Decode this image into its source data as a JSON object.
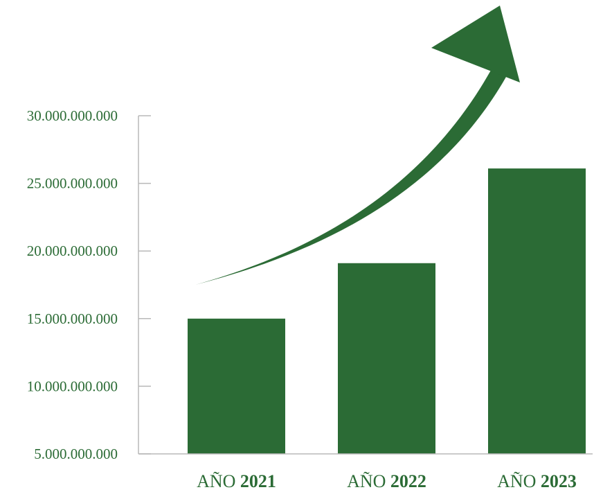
{
  "chart_data": {
    "type": "bar",
    "title": "",
    "xlabel": "",
    "ylabel": "",
    "categories": [
      {
        "prefix": "AÑO",
        "year": "2021"
      },
      {
        "prefix": "AÑO",
        "year": "2022"
      },
      {
        "prefix": "AÑO",
        "year": "2023"
      }
    ],
    "values": [
      15000000000,
      19100000000,
      26100000000
    ],
    "ylim": [
      5000000000,
      30000000000
    ],
    "yticks": [
      5000000000,
      10000000000,
      15000000000,
      20000000000,
      25000000000,
      30000000000
    ],
    "ytick_labels": [
      "5.000.000.000",
      "10.000.000.000",
      "15.000.000.000",
      "20.000.000.000",
      "25.000.000.000",
      "30.000.000.000"
    ],
    "grid": false,
    "legend": "none",
    "annotation": "upward-trend-arrow",
    "colors": {
      "bar": "#2b6b35",
      "axis": "#b8b8b8",
      "text": "#2b6b35"
    }
  }
}
